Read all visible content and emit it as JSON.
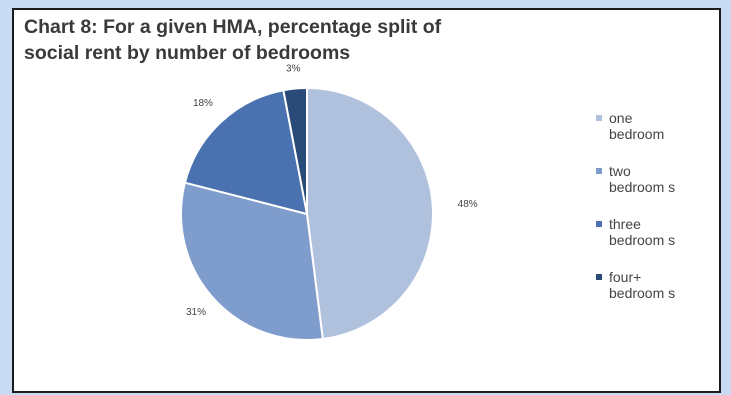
{
  "chart_data": {
    "type": "pie",
    "title": [
      "Chart 8: For a given HMA, percentage split of",
      "social rent by number of bedrooms"
    ],
    "categories": [
      "one bedroom",
      "two bedroom s",
      "three bedroom s",
      "four+ bedroom s"
    ],
    "values": [
      48,
      31,
      18,
      3
    ],
    "labels": [
      "48%",
      "31%",
      "18%",
      "3%"
    ],
    "colors": [
      "#b0c1de",
      "#7e9ccc",
      "#4a72b0",
      "#2a4a78"
    ],
    "legend_position": "right"
  }
}
